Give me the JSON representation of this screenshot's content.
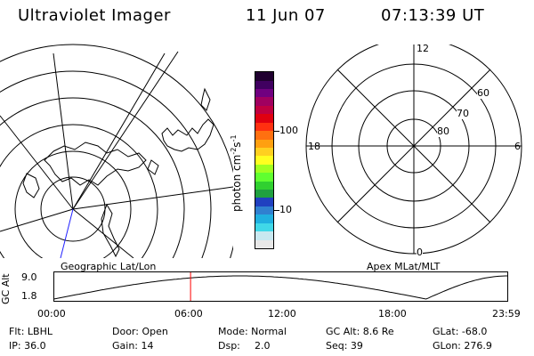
{
  "header": {
    "instrument": "Ultraviolet Imager",
    "date": "11 Jun 07",
    "time": "07:13:39 UT"
  },
  "colorbar": {
    "unit_label": "photon cm",
    "unit_exp1": "-2",
    "unit_s": "s",
    "unit_exp2": "-1",
    "tick_high": "100",
    "tick_low": "10",
    "colors": [
      "#e8e8e8",
      "#c8e8f0",
      "#40d8e8",
      "#20b0e0",
      "#3080d0",
      "#2040c0",
      "#20a040",
      "#30d030",
      "#60ff30",
      "#a0ff20",
      "#ffff20",
      "#ffd020",
      "#ffa010",
      "#ff7010",
      "#ff3010",
      "#e00010",
      "#c00040",
      "#a00060",
      "#700080",
      "#400060",
      "#200030"
    ]
  },
  "right_panel": {
    "labels": {
      "top": "12",
      "left": "18",
      "right": "6",
      "bottom": "0"
    },
    "ring_labels": [
      "60",
      "70",
      "80"
    ]
  },
  "timeline": {
    "left_title": "Geographic Lat/Lon",
    "right_title": "Apex  MLat/MLT",
    "y_axis_label": "GC Alt",
    "y_ticks": [
      "9.0",
      "1.8"
    ],
    "x_ticks": [
      "00:00",
      "06:00",
      "12:00",
      "18:00",
      "23:59"
    ],
    "marker_color": "#ff0000",
    "marker_time_fraction": 0.3012
  },
  "info": {
    "filter": "Flt: LBHL",
    "ip": "IP: 36.0",
    "door": "Door: Open",
    "gain": "Gain: 14",
    "mode": "Mode: Normal",
    "dsp_label": "Dsp:",
    "dsp_value": "2.0",
    "gc_alt": "GC Alt: 8.6 Re",
    "seq": "Seq: 39",
    "glat": "GLat: -68.0",
    "glon": "GLon: 276.9"
  }
}
